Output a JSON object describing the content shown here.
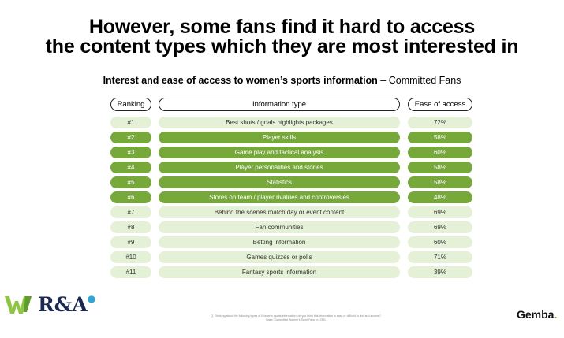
{
  "title_line1": "However, some fans find it hard to access",
  "title_line2": "the content types which they are most interested in",
  "subtitle_bold": "Interest and ease of access to women’s sports information",
  "subtitle_rest": " – Committed Fans",
  "headers": {
    "ranking": "Ranking",
    "info": "Information type",
    "ease": "Ease of access"
  },
  "rows": [
    {
      "rank": "#1",
      "info": "Best shots / goals highlights packages",
      "ease": "72%"
    },
    {
      "rank": "#2",
      "info": "Player skills",
      "ease": "58%"
    },
    {
      "rank": "#3",
      "info": "Game play and tactical analysis",
      "ease": "60%"
    },
    {
      "rank": "#4",
      "info": "Player personalities and stories",
      "ease": "58%"
    },
    {
      "rank": "#5",
      "info": "Statistics",
      "ease": "58%"
    },
    {
      "rank": "#6",
      "info": "Stores on team / player rivalries and controversies",
      "ease": "48%"
    },
    {
      "rank": "#7",
      "info": "Behind the scenes match day or event content",
      "ease": "69%"
    },
    {
      "rank": "#8",
      "info": "Fan communities",
      "ease": "69%"
    },
    {
      "rank": "#9",
      "info": "Betting information",
      "ease": "60%"
    },
    {
      "rank": "#10",
      "info": "Games quizzes or polls",
      "ease": "71%"
    },
    {
      "rank": "#11",
      "info": "Fantasy sports information",
      "ease": "39%"
    }
  ],
  "highlighted_rows": [
    1,
    2,
    3,
    4,
    5
  ],
  "colors": {
    "highlight": "#76a83a",
    "light": "#e5f1d6"
  },
  "footnote_line1": "Q. Thinking about the following types of Women's sports information, do you think this information is easy or difficult to find and access?",
  "footnote_line2": "Base: Committed Women's Sport Fans (n=786)",
  "logo_ra": "R&A",
  "logo_gemba": "Gemba",
  "logo_gemba_dot": "."
}
